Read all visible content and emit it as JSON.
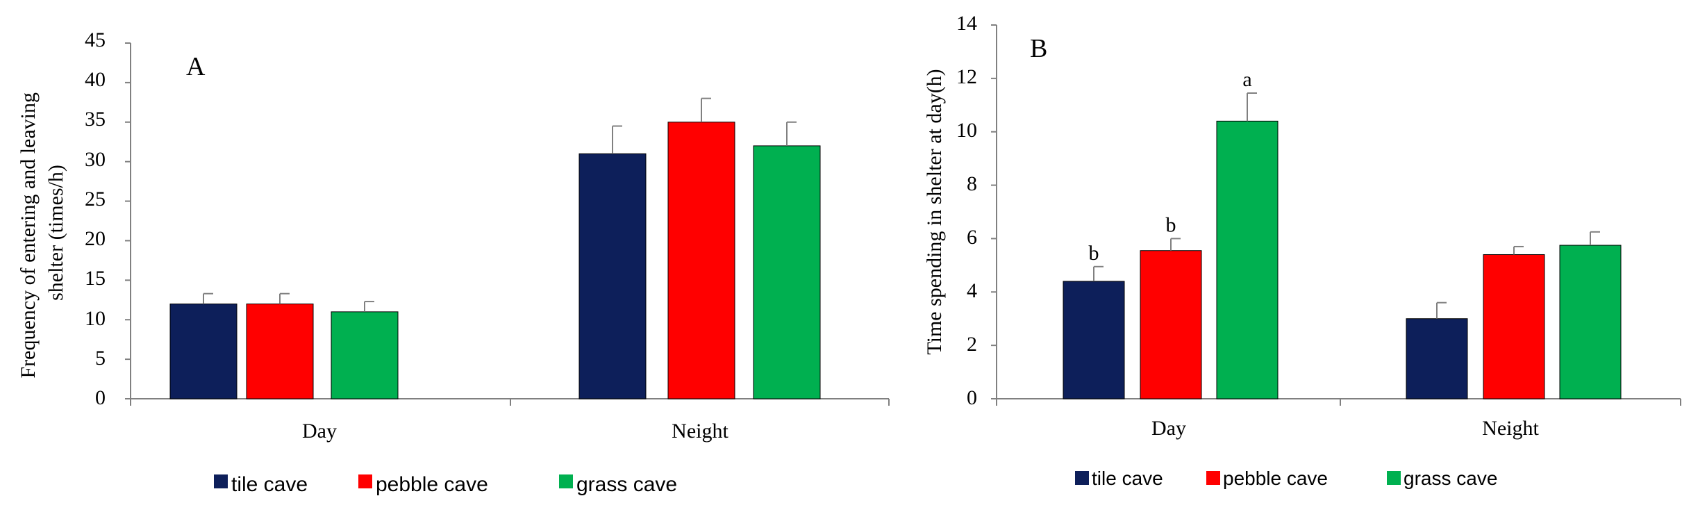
{
  "colors": {
    "tile_cave": "#0d1f5a",
    "pebble_cave": "#ff0000",
    "grass_cave": "#00b050",
    "axis": "#808080",
    "errorbar": "#808080"
  },
  "chart_data": [
    {
      "type": "bar",
      "panel_label": "A",
      "categories": [
        "Day",
        "Neight"
      ],
      "series": [
        {
          "name": "tile cave",
          "values": [
            12,
            31
          ],
          "errors": [
            1.3,
            3.5
          ]
        },
        {
          "name": "pebble cave",
          "values": [
            12,
            35
          ],
          "errors": [
            1.3,
            3.0
          ]
        },
        {
          "name": "grass cave",
          "values": [
            11,
            32
          ],
          "errors": [
            1.3,
            3.0
          ]
        }
      ],
      "ylabel_lines": [
        "Frequency of entering and leaving",
        "shelter (times/h)"
      ],
      "ylim": [
        0,
        45
      ],
      "yticks": [
        "0",
        "5",
        "10",
        "15",
        "20",
        "25",
        "30",
        "35",
        "40",
        "45"
      ],
      "legend_position": "bottom",
      "grid": false
    },
    {
      "type": "bar",
      "panel_label": "B",
      "categories": [
        "Day",
        "Neight"
      ],
      "series": [
        {
          "name": "tile cave",
          "values": [
            4.4,
            3.0
          ],
          "errors": [
            0.55,
            0.6
          ],
          "labels": [
            "b",
            ""
          ]
        },
        {
          "name": "pebble cave",
          "values": [
            5.55,
            5.4
          ],
          "errors": [
            0.45,
            0.3
          ],
          "labels": [
            "b",
            ""
          ]
        },
        {
          "name": "grass cave",
          "values": [
            10.4,
            5.75
          ],
          "errors": [
            1.05,
            0.5
          ],
          "labels": [
            "a",
            ""
          ]
        }
      ],
      "ylabel_lines": [
        "Time spending in shelter at day(h)"
      ],
      "ylim": [
        0,
        14
      ],
      "yticks": [
        "0",
        "2",
        "4",
        "6",
        "8",
        "10",
        "12",
        "14"
      ],
      "legend_position": "bottom",
      "grid": false
    }
  ]
}
